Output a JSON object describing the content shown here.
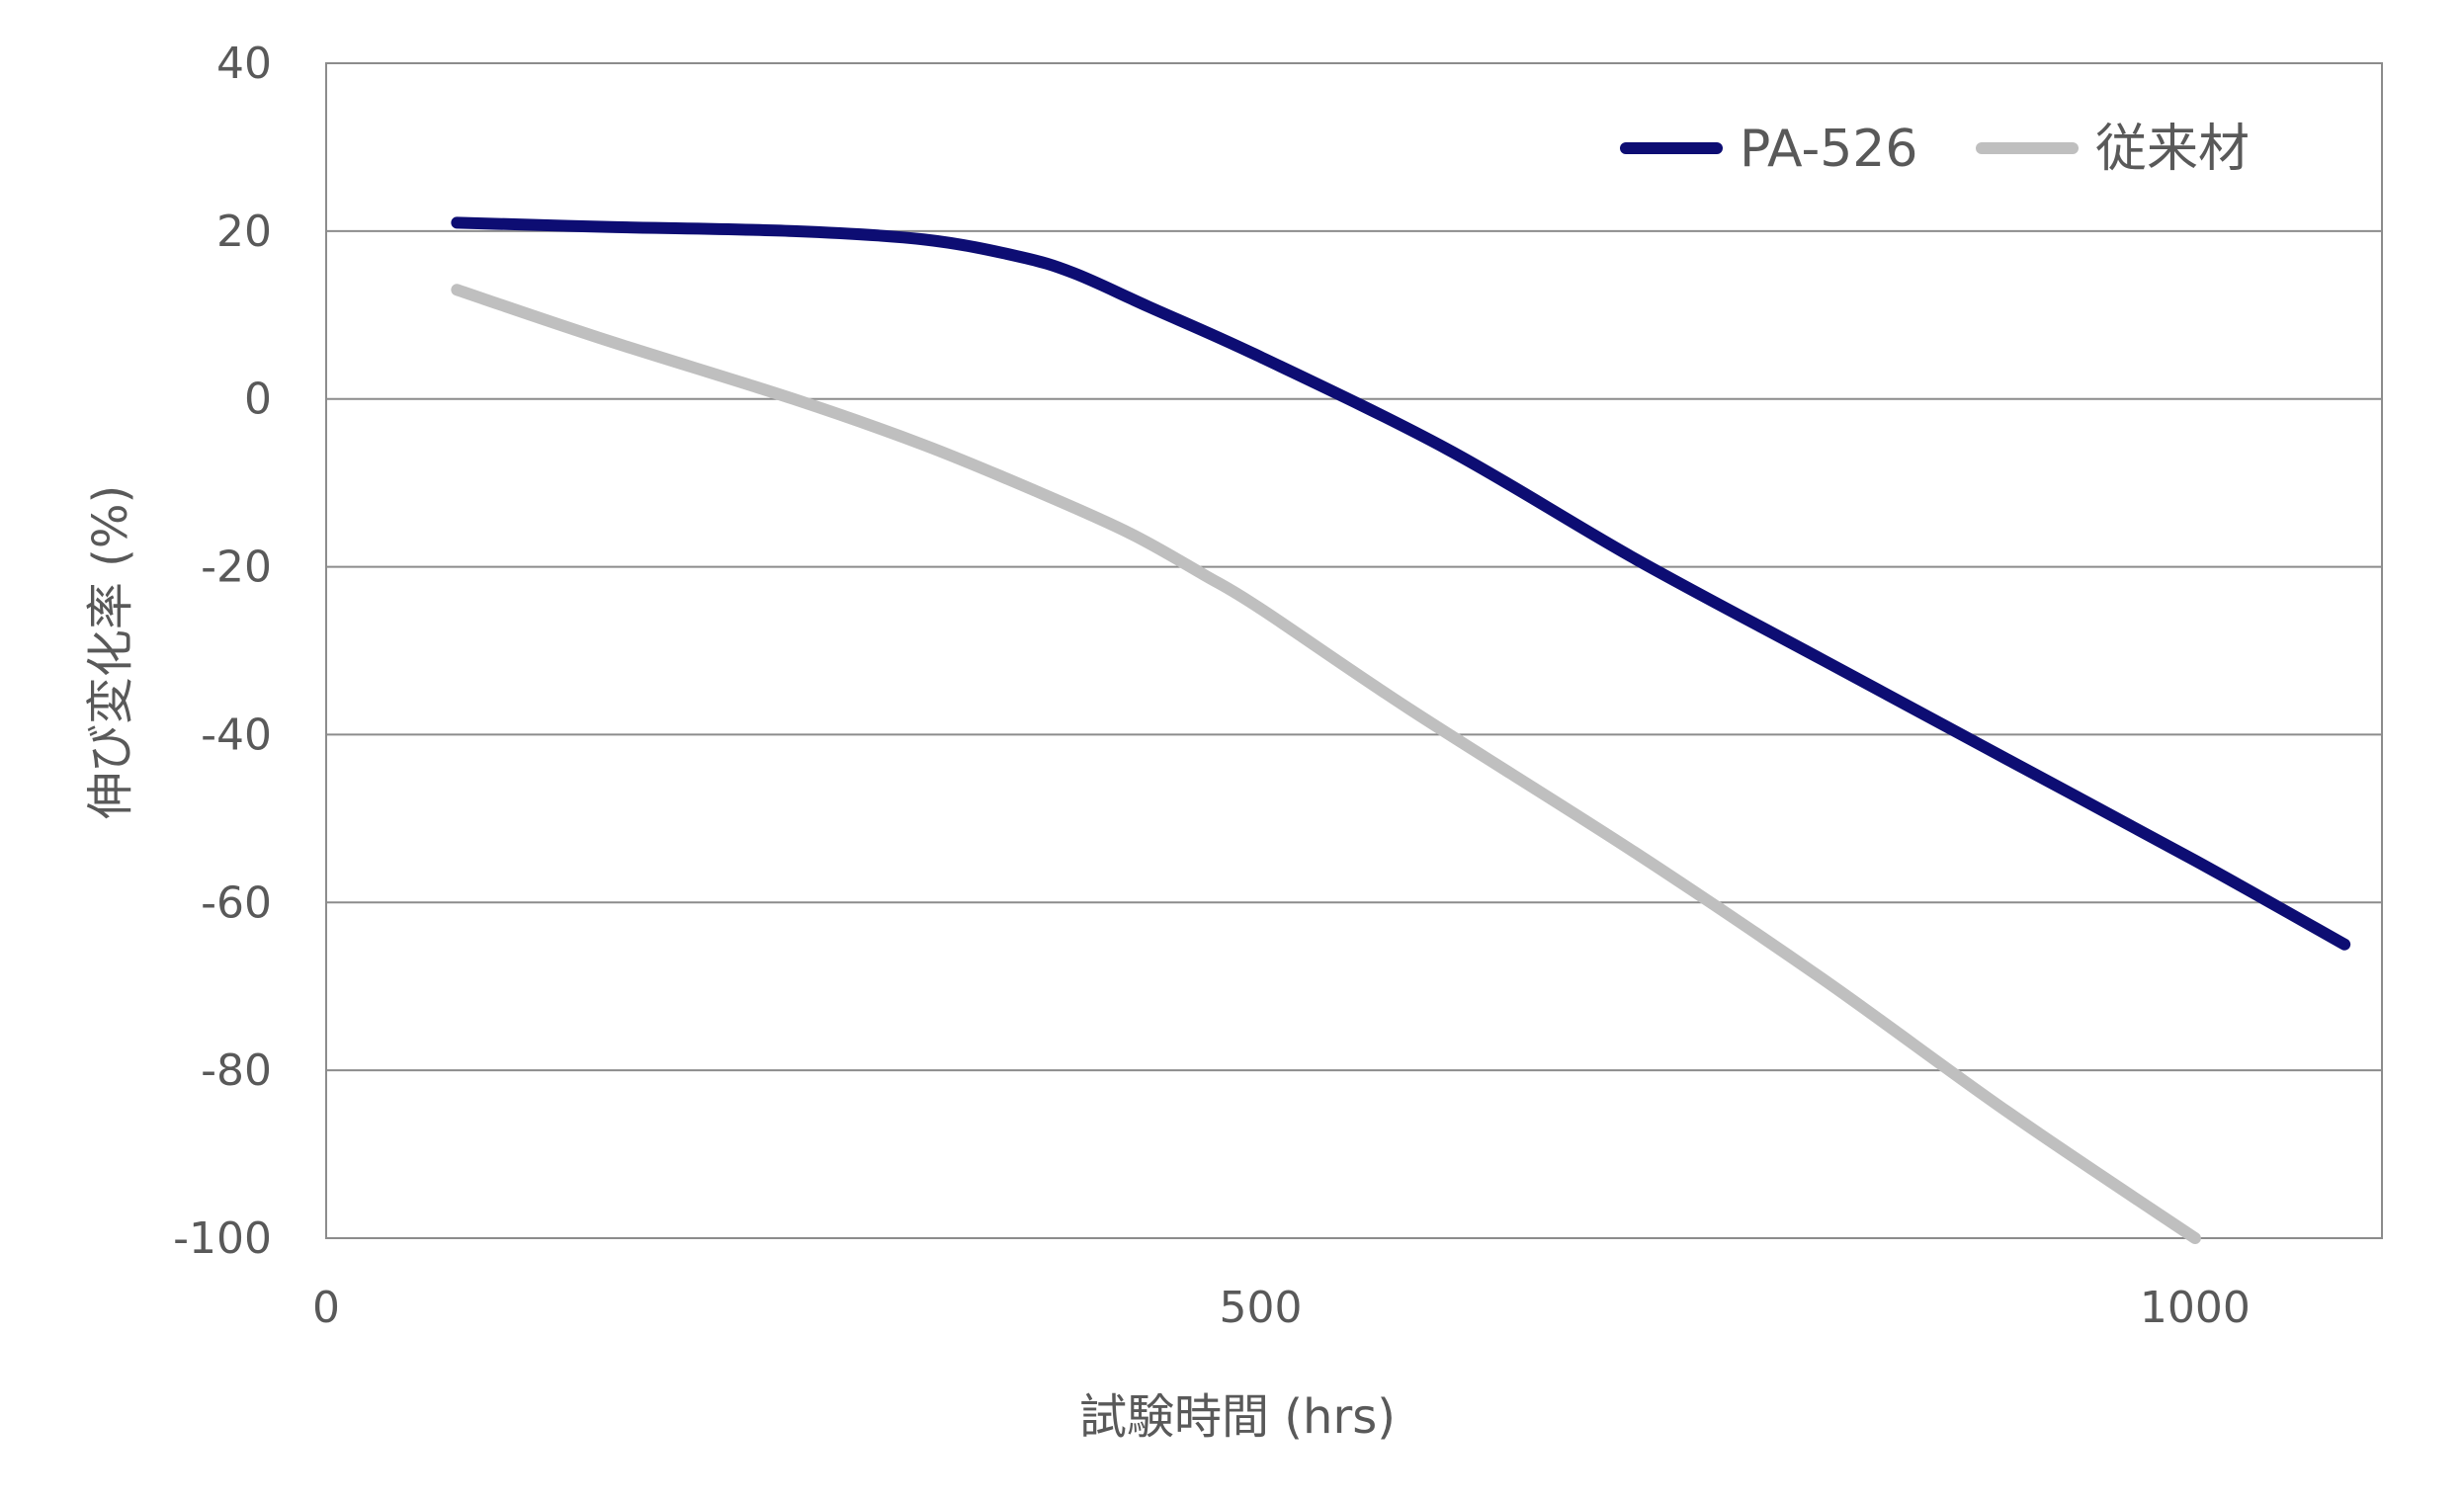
{
  "chart_data": {
    "type": "line",
    "title": "",
    "xlabel": "試験時間 (hrs)",
    "ylabel": "伸び変化率 (%)",
    "xlim": [
      0,
      1100
    ],
    "ylim": [
      -100,
      40
    ],
    "x_ticks": [
      0,
      500,
      1000
    ],
    "y_ticks": [
      40,
      20,
      0,
      -20,
      -40,
      -60,
      -80,
      -100
    ],
    "grid": "horizontal",
    "legend_position": "top-right",
    "series": [
      {
        "name": "PA-526",
        "color": "#0d0d73",
        "points": [
          [
            70,
            21
          ],
          [
            150,
            20.5
          ],
          [
            250,
            20
          ],
          [
            320,
            19
          ],
          [
            370,
            17
          ],
          [
            400,
            15
          ],
          [
            440,
            11
          ],
          [
            500,
            5
          ],
          [
            600,
            -6
          ],
          [
            700,
            -19
          ],
          [
            800,
            -31
          ],
          [
            900,
            -43
          ],
          [
            1000,
            -55
          ],
          [
            1080,
            -65
          ]
        ]
      },
      {
        "name": "従来材",
        "color": "#bfbfbf",
        "points": [
          [
            70,
            13
          ],
          [
            150,
            7
          ],
          [
            250,
            0
          ],
          [
            320,
            -5.5
          ],
          [
            380,
            -11
          ],
          [
            430,
            -16
          ],
          [
            470,
            -21
          ],
          [
            500,
            -25
          ],
          [
            580,
            -37
          ],
          [
            700,
            -54
          ],
          [
            800,
            -69
          ],
          [
            900,
            -85
          ],
          [
            1000,
            -100
          ]
        ]
      }
    ]
  }
}
